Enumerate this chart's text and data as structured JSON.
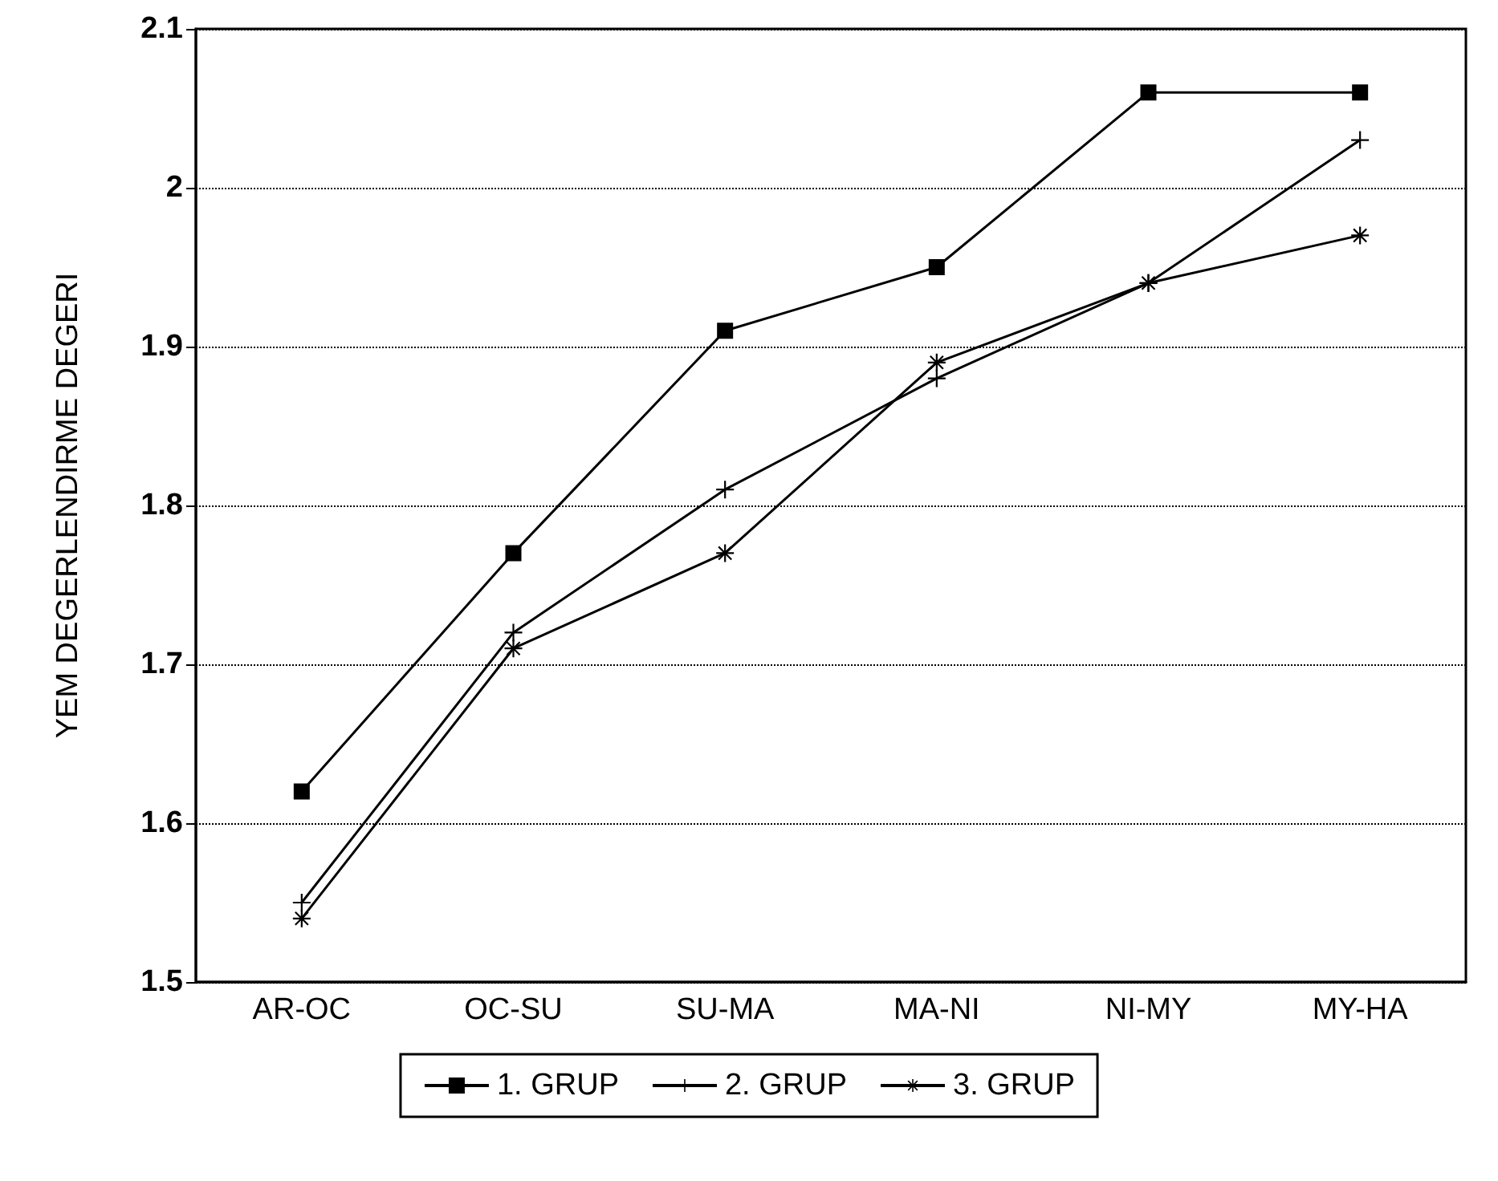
{
  "chart_data": {
    "type": "line",
    "ylabel": "YEM DEGERLENDIRME DEGERI",
    "categories": [
      "AR-OC",
      "OC-SU",
      "SU-MA",
      "MA-NI",
      "NI-MY",
      "MY-HA"
    ],
    "series": [
      {
        "name": "1. GRUP",
        "color": "#000000",
        "marker": "square",
        "values": [
          1.62,
          1.77,
          1.91,
          1.95,
          2.06,
          2.06
        ]
      },
      {
        "name": "2. GRUP",
        "color": "#000000",
        "marker": "cross",
        "values": [
          1.55,
          1.72,
          1.81,
          1.88,
          1.94,
          2.03
        ]
      },
      {
        "name": "3. GRUP",
        "color": "#000000",
        "marker": "star",
        "values": [
          1.54,
          1.71,
          1.77,
          1.89,
          1.94,
          1.97
        ]
      }
    ],
    "ylim": [
      1.5,
      2.1
    ],
    "yticks": [
      1.5,
      1.6,
      1.7,
      1.8,
      1.9,
      2,
      2.1
    ],
    "grid": "y",
    "line_style": "solid",
    "legend": "bottom"
  }
}
